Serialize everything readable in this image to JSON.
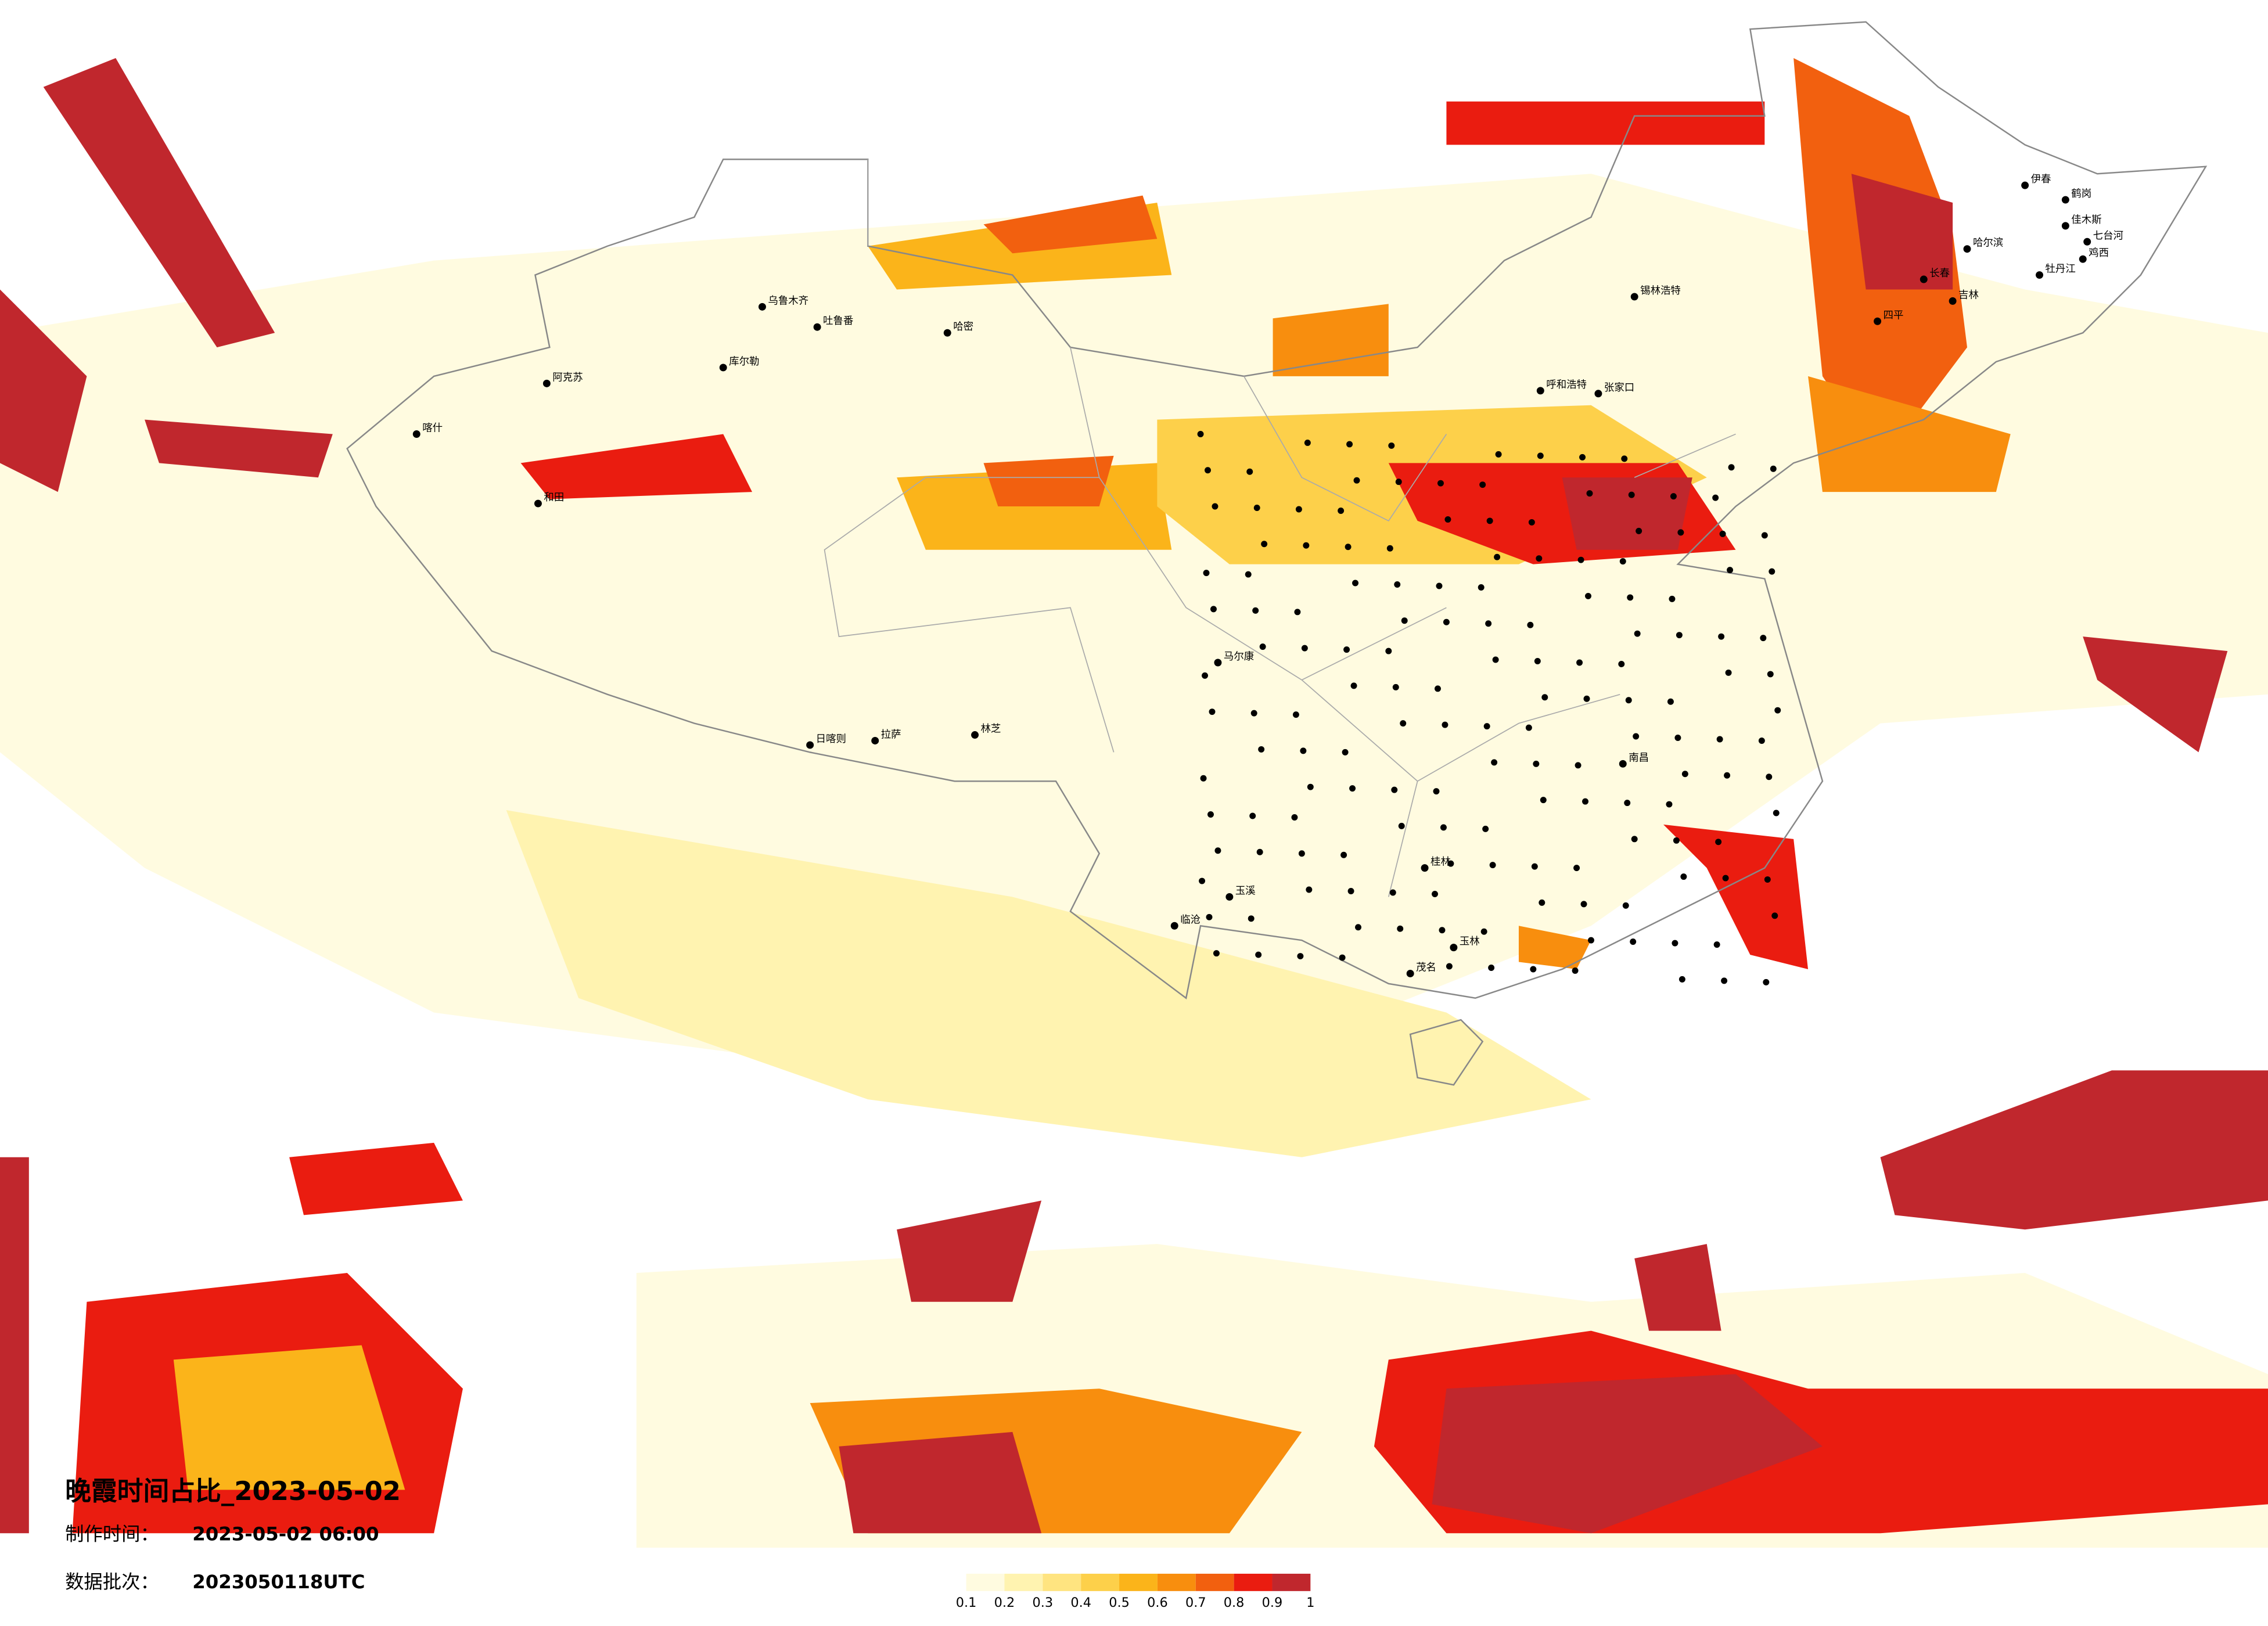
{
  "title": "晚霞时间占比_2023-05-02",
  "info": [
    {
      "label": "制作时间：",
      "value": "2023-05-02 06:00"
    },
    {
      "label": "数据批次：",
      "value": "2023050118UTC"
    }
  ],
  "legend": {
    "colors": [
      "#fffbe0",
      "#fff3b0",
      "#ffe480",
      "#fdd04a",
      "#fbb41a",
      "#f88e0e",
      "#f2600f",
      "#ea1c10",
      "#c0272d"
    ],
    "ticks": [
      0.1,
      0.2,
      0.3,
      0.4,
      0.5,
      0.6,
      0.7,
      0.8,
      0.9,
      1
    ]
  },
  "cities": [
    "乌鲁木齐",
    "吐鲁番",
    "哈密",
    "阿克苏",
    "喀什",
    "和田",
    "库尔勒",
    "拉萨",
    "日喀则",
    "林芝",
    "呼和浩特",
    "张家口",
    "锡林浩特",
    "伊春",
    "鹤岗",
    "佳木斯",
    "七台河",
    "鸡西",
    "牡丹江",
    "哈尔滨",
    "吉林",
    "四平",
    "长春",
    "桂林",
    "玉林",
    "南昌",
    "茂名",
    "马尔康",
    "临沧",
    "玉溪"
  ]
}
